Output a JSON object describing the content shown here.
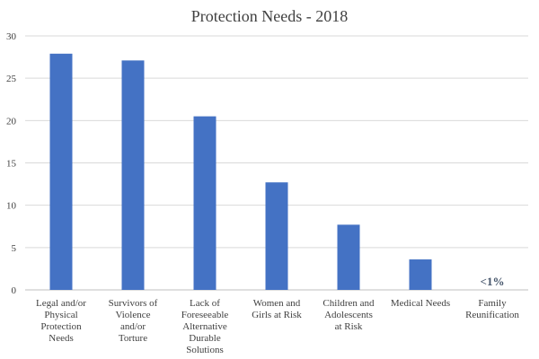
{
  "chart_data": {
    "type": "bar",
    "title": "Protection Needs - 2018",
    "xlabel": "",
    "ylabel": "",
    "ylim": [
      0,
      30
    ],
    "yticks": [
      0,
      5,
      10,
      15,
      20,
      25,
      30
    ],
    "grid": true,
    "categories": [
      "Legal and/or Physical Protection Needs",
      "Survivors of Violence and/or Torture",
      "Lack of Foreseeable Alternative Durable Solutions",
      "Women and Girls at Risk",
      "Children and Adolescents at Risk",
      "Medical Needs",
      "Family Reunification"
    ],
    "values": [
      27.9,
      27.1,
      20.5,
      12.7,
      7.7,
      3.6,
      0
    ],
    "bar_color": "#4472c4",
    "annotations": [
      {
        "category_index": 6,
        "text": "<1%"
      }
    ]
  }
}
